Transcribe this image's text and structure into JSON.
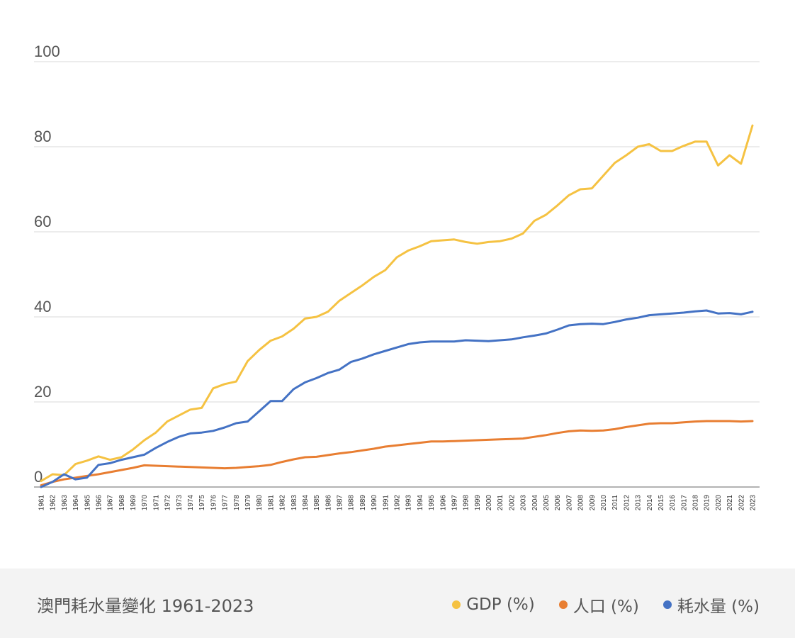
{
  "chart_data": {
    "type": "line",
    "title": "澳門耗水量變化",
    "year_range": "1961-2023",
    "ylim": [
      0,
      100
    ],
    "yticks": [
      "0",
      "20",
      "40",
      "60",
      "80",
      "100"
    ],
    "grid": true,
    "legend_position": "bottom-right",
    "x": [
      "1961",
      "1962",
      "1963",
      "1964",
      "1965",
      "1966",
      "1967",
      "1968",
      "1969",
      "1970",
      "1971",
      "1972",
      "1973",
      "1974",
      "1975",
      "1976",
      "1977",
      "1978",
      "1979",
      "1980",
      "1981",
      "1982",
      "1983",
      "1984",
      "1985",
      "1986",
      "1987",
      "1988",
      "1989",
      "1990",
      "1991",
      "1992",
      "1993",
      "1994",
      "1995",
      "1996",
      "1997",
      "1998",
      "1999",
      "2000",
      "2001",
      "2002",
      "2003",
      "2004",
      "2005",
      "2006",
      "2007",
      "2008",
      "2009",
      "2010",
      "2011",
      "2012",
      "2013",
      "2014",
      "2015",
      "2016",
      "2017",
      "2018",
      "2019",
      "2020",
      "2021",
      "2022",
      "2023"
    ],
    "series": [
      {
        "name": "GDP (%)",
        "color": "#f5c242",
        "values": [
          1.4,
          3.0,
          2.8,
          5.4,
          6.2,
          7.2,
          6.4,
          7.0,
          8.8,
          11.0,
          12.8,
          15.4,
          16.8,
          18.2,
          18.6,
          23.2,
          24.2,
          24.8,
          29.6,
          32.2,
          34.4,
          35.4,
          37.2,
          39.6,
          40.0,
          41.2,
          43.8,
          45.6,
          47.4,
          49.4,
          51.0,
          54.0,
          55.6,
          56.6,
          57.8,
          58.0,
          58.2,
          57.6,
          57.2,
          57.6,
          57.8,
          58.4,
          59.6,
          62.6,
          64.0,
          66.2,
          68.6,
          70.0,
          70.2,
          73.2,
          76.2,
          78.0,
          80.0,
          80.6,
          79.0,
          79.0,
          80.2,
          81.2,
          81.2,
          75.6,
          78.0,
          76.0,
          85.0
        ]
      },
      {
        "name": "人口 (%)",
        "color": "#e87e32",
        "values": [
          0.4,
          1.2,
          1.8,
          2.2,
          2.6,
          3.0,
          3.5,
          4.0,
          4.5,
          5.1,
          5.0,
          4.9,
          4.8,
          4.7,
          4.6,
          4.5,
          4.4,
          4.5,
          4.7,
          4.9,
          5.2,
          5.9,
          6.5,
          7.0,
          7.1,
          7.5,
          7.9,
          8.2,
          8.6,
          9.0,
          9.5,
          9.8,
          10.1,
          10.4,
          10.7,
          10.7,
          10.8,
          10.9,
          11.0,
          11.1,
          11.2,
          11.3,
          11.4,
          11.8,
          12.2,
          12.7,
          13.1,
          13.3,
          13.2,
          13.3,
          13.6,
          14.1,
          14.5,
          14.9,
          15.0,
          15.0,
          15.2,
          15.4,
          15.5,
          15.5,
          15.5,
          15.4,
          15.5
        ]
      },
      {
        "name": "耗水量 (%)",
        "color": "#4472c4",
        "values": [
          0.0,
          1.2,
          3.0,
          1.8,
          2.2,
          5.2,
          5.6,
          6.4,
          7.0,
          7.6,
          9.2,
          10.6,
          11.8,
          12.6,
          12.8,
          13.2,
          14.0,
          15.0,
          15.4,
          17.8,
          20.2,
          20.2,
          23.0,
          24.6,
          25.6,
          26.8,
          27.6,
          29.4,
          30.2,
          31.2,
          32.0,
          32.8,
          33.6,
          34.0,
          34.2,
          34.2,
          34.2,
          34.5,
          34.4,
          34.3,
          34.5,
          34.7,
          35.2,
          35.6,
          36.1,
          37.0,
          38.0,
          38.3,
          38.4,
          38.3,
          38.8,
          39.4,
          39.8,
          40.4,
          40.6,
          40.8,
          41.0,
          41.3,
          41.5,
          40.8,
          40.9,
          40.6,
          41.2
        ]
      }
    ]
  },
  "footer": {
    "title": "澳門耗水量變化  1961-2023",
    "legend": [
      "GDP (%)",
      "人口 (%)",
      "耗水量 (%)"
    ]
  }
}
